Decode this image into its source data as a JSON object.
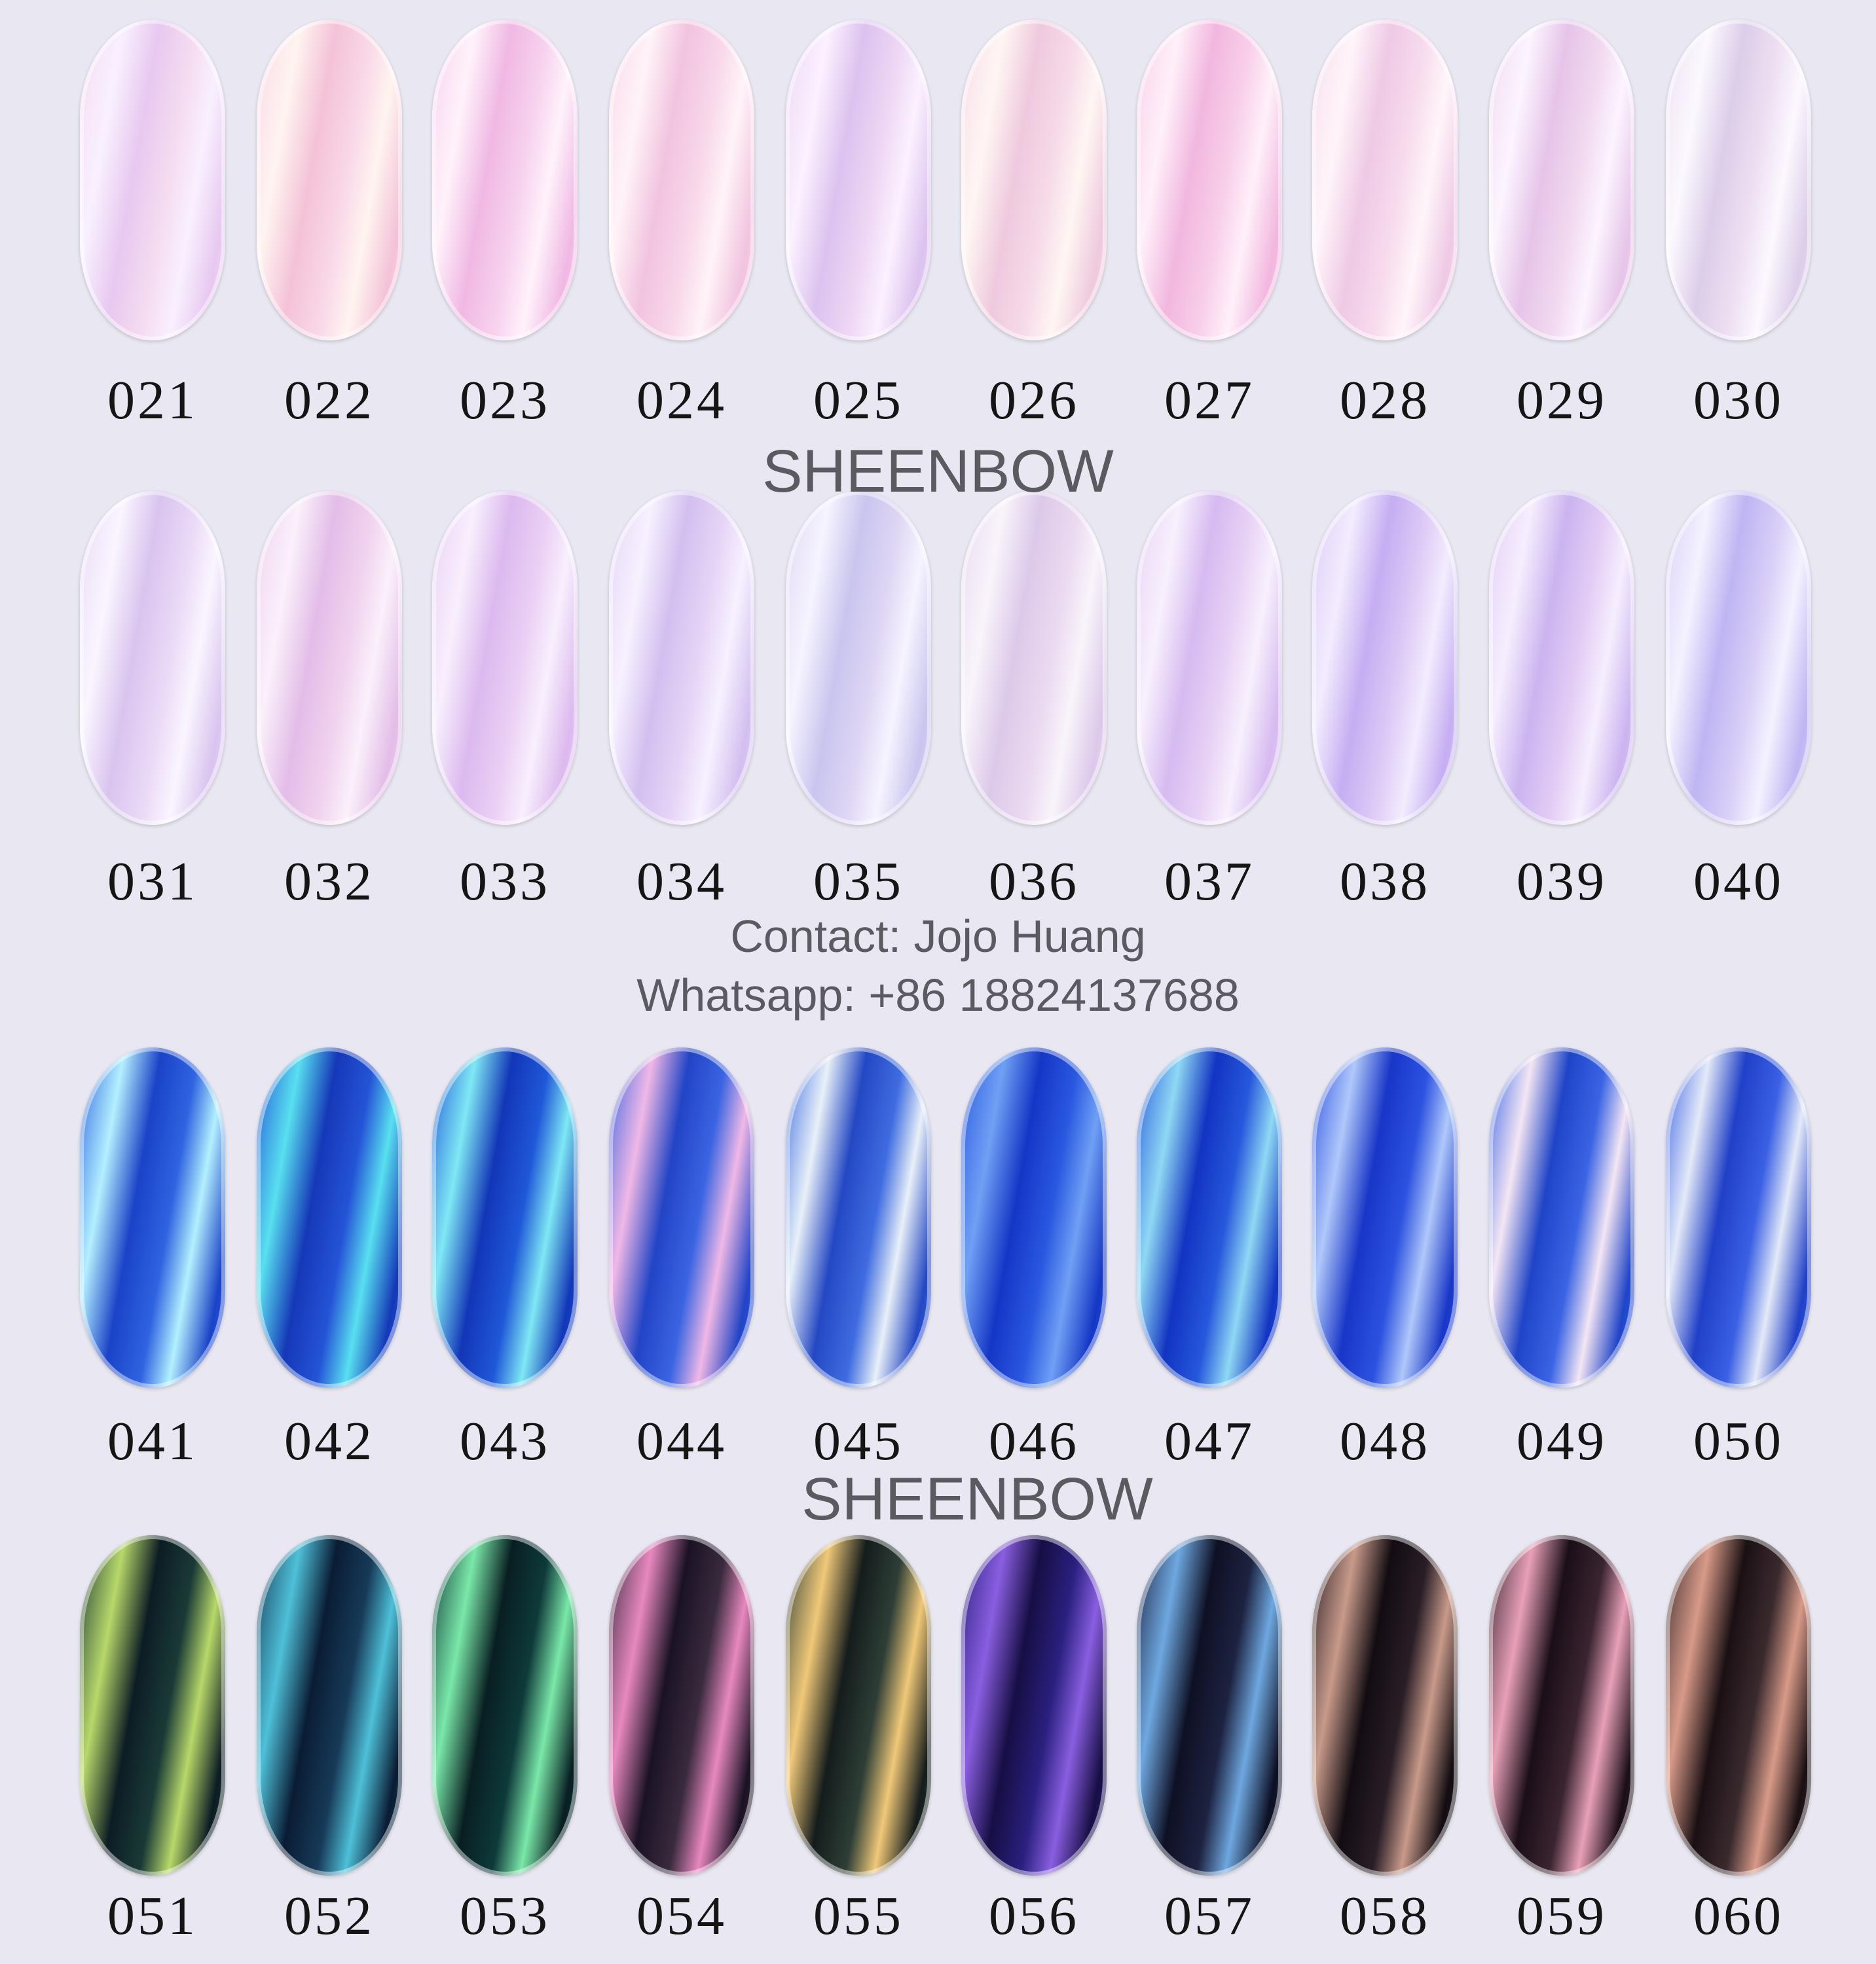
{
  "brand": "SHEENBOW",
  "contact_line": "Contact: Jojo Huang",
  "whatsapp_line": "Whatsapp: +86 18824137688",
  "rows": [
    {
      "codes": [
        "021",
        "022",
        "023",
        "024",
        "025",
        "026",
        "027",
        "028",
        "029",
        "030"
      ],
      "colors": [
        [
          "#f5dcf0",
          "#e8c8f0",
          "#f9f0ff"
        ],
        [
          "#f9d8e8",
          "#f4c2d8",
          "#fff4f0"
        ],
        [
          "#f7d2ee",
          "#f0b8e4",
          "#fff2fb"
        ],
        [
          "#f8d8ea",
          "#f2c3df",
          "#fff3f8"
        ],
        [
          "#eed6f4",
          "#dcc2ef",
          "#fbf1ff"
        ],
        [
          "#f6dbe9",
          "#efc9de",
          "#fff6f3"
        ],
        [
          "#f8cfe9",
          "#f2b7df",
          "#fff0fa"
        ],
        [
          "#f7dced",
          "#efc9e5",
          "#fff5fa"
        ],
        [
          "#f2d9ef",
          "#e6c4e9",
          "#fcf4ff"
        ],
        [
          "#eee0f2",
          "#dccde9",
          "#fcf8ff"
        ]
      ]
    },
    {
      "codes": [
        "031",
        "032",
        "033",
        "034",
        "035",
        "036",
        "037",
        "038",
        "039",
        "040"
      ],
      "colors": [
        [
          "#ead9f6",
          "#d9c4ef",
          "#faf5ff"
        ],
        [
          "#f0d2ee",
          "#e3bde8",
          "#fbf0fb"
        ],
        [
          "#ebcff4",
          "#dcb9ef",
          "#f8effd"
        ],
        [
          "#e6d4f6",
          "#d3bff0",
          "#f7f1ff"
        ],
        [
          "#dfd6f4",
          "#c9c5ef",
          "#f6f4ff"
        ],
        [
          "#ead9f0",
          "#dcc9ea",
          "#f9f4fb"
        ],
        [
          "#e8d2f5",
          "#d6baf1",
          "#f8f0fd"
        ],
        [
          "#decbf6",
          "#c5aef2",
          "#f3ecfe"
        ],
        [
          "#e3cdf5",
          "#cbb4f0",
          "#f6eefe"
        ],
        [
          "#d9cff7",
          "#bfb5f3",
          "#f4f2ff"
        ]
      ]
    },
    {
      "codes": [
        "041",
        "042",
        "043",
        "044",
        "045",
        "046",
        "047",
        "048",
        "049",
        "050"
      ],
      "colors": [
        [
          "#2f63e0",
          "#1a43c8",
          "#b3f0ff"
        ],
        [
          "#2454d6",
          "#1538b8",
          "#58e0f0"
        ],
        [
          "#1f58d8",
          "#1236b8",
          "#7fe8f4"
        ],
        [
          "#3a64e2",
          "#2244c6",
          "#f0b8e6"
        ],
        [
          "#3e6ce0",
          "#2448c4",
          "#e8f0f8"
        ],
        [
          "#2a58e0",
          "#1436c6",
          "#6fa0f4"
        ],
        [
          "#2658dc",
          "#1234c2",
          "#8fd8f4"
        ],
        [
          "#2c52e0",
          "#1836c8",
          "#b0c8fa"
        ],
        [
          "#3a64e4",
          "#1f44c8",
          "#f4e6f4"
        ],
        [
          "#3a60e4",
          "#2040c8",
          "#e4eaf8"
        ]
      ]
    },
    {
      "codes": [
        "051",
        "052",
        "053",
        "054",
        "055",
        "056",
        "057",
        "058",
        "059",
        "060"
      ],
      "colors": [
        [
          "#1a3a36",
          "#0c1c24",
          "#b8d86a"
        ],
        [
          "#163a58",
          "#0a1c34",
          "#4ec0d8"
        ],
        [
          "#0e3a3a",
          "#081e22",
          "#7ae8a8"
        ],
        [
          "#3a2a3e",
          "#1a1224",
          "#e888c0"
        ],
        [
          "#2e3e36",
          "#141c1c",
          "#f0c878"
        ],
        [
          "#2a2080",
          "#160e44",
          "#8a5ee0"
        ],
        [
          "#1c2240",
          "#0e1024",
          "#6ea8e0"
        ],
        [
          "#2a1e26",
          "#120c12",
          "#c89a8a"
        ],
        [
          "#3a2430",
          "#1a0e18",
          "#e8a0b8"
        ],
        [
          "#3a2a2e",
          "#1a1014",
          "#d89a88"
        ]
      ]
    }
  ]
}
